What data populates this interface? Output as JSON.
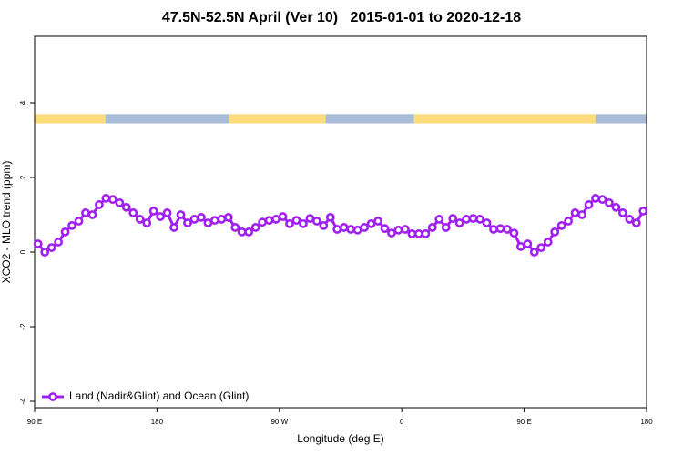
{
  "chart_data": {
    "type": "line",
    "title": "47.5N-52.5N April (Ver 10)   2015-01-01 to 2020-12-18",
    "x_label": "Longitude (deg E)",
    "y_label": "XCO2 - MLO trend (ppm)",
    "xlim": [
      90,
      540
    ],
    "ylim": [
      -4.17,
      5.78
    ],
    "xticks": [
      {
        "value": 90,
        "label": "90 E"
      },
      {
        "value": 180,
        "label": "180"
      },
      {
        "value": 270,
        "label": "90 W"
      },
      {
        "value": 360,
        "label": "0"
      },
      {
        "value": 450,
        "label": "90 E"
      },
      {
        "value": 540,
        "label": "180"
      }
    ],
    "yticks": [
      -4,
      -2,
      0,
      2,
      4
    ],
    "legend": "bottom-left",
    "strip_ylim": [
      3.45,
      3.7
    ],
    "strip": [
      [
        90,
        142,
        "#fddc7c"
      ],
      [
        142,
        233,
        "#a9bdd9"
      ],
      [
        233,
        304,
        "#fddc7c"
      ],
      [
        304,
        369,
        "#a9bdd9"
      ],
      [
        369,
        503,
        "#fddc7c"
      ],
      [
        503,
        540,
        "#a9bdd9"
      ]
    ],
    "x": [
      92.5,
      97.5,
      102.5,
      107.5,
      112.5,
      117.5,
      122.5,
      127.5,
      132.5,
      137.5,
      142.5,
      147.5,
      152.5,
      157.5,
      162.5,
      167.5,
      172.5,
      177.5,
      182.5,
      187.5,
      192.5,
      197.5,
      202.5,
      207.5,
      212.5,
      217.5,
      222.5,
      227.5,
      232.5,
      237.5,
      242.5,
      247.5,
      252.5,
      257.5,
      262.5,
      267.5,
      272.5,
      277.5,
      282.5,
      287.5,
      292.5,
      297.5,
      302.5,
      307.5,
      312.5,
      317.5,
      322.5,
      327.5,
      332.5,
      337.5,
      342.5,
      347.5,
      352.5,
      357.5,
      362.5,
      367.5,
      372.5,
      377.5,
      382.5,
      387.5,
      392.5,
      397.5,
      402.5,
      407.5,
      412.5,
      417.5,
      422.5,
      427.5,
      432.5,
      437.5,
      442.5,
      447.5,
      452.5,
      457.5,
      462.5,
      467.5,
      472.5,
      477.5,
      482.5,
      487.5,
      492.5,
      497.5,
      502.5,
      507.5,
      512.5,
      517.5,
      522.5,
      527.5,
      532.5,
      537.5
    ],
    "series": [
      {
        "name": "Land (Nadir&Glint) and Ocean (Glint)",
        "color": "#a020f0",
        "values": [
          0.22,
          0.0,
          0.12,
          0.27,
          0.54,
          0.71,
          0.83,
          1.05,
          1.0,
          1.27,
          1.44,
          1.41,
          1.32,
          1.2,
          1.05,
          0.88,
          0.78,
          1.1,
          0.95,
          1.05,
          0.66,
          1.0,
          0.78,
          0.88,
          0.93,
          0.78,
          0.85,
          0.88,
          0.93,
          0.66,
          0.54,
          0.54,
          0.66,
          0.8,
          0.85,
          0.88,
          0.95,
          0.76,
          0.85,
          0.76,
          0.9,
          0.83,
          0.71,
          0.93,
          0.61,
          0.66,
          0.61,
          0.59,
          0.66,
          0.76,
          0.83,
          0.63,
          0.51,
          0.59,
          0.61,
          0.49,
          0.49,
          0.49,
          0.66,
          0.88,
          0.66,
          0.9,
          0.78,
          0.88,
          0.9,
          0.88,
          0.78,
          0.61,
          0.63,
          0.61,
          0.51,
          0.15,
          0.22,
          0.0,
          0.12,
          0.27,
          0.54,
          0.71,
          0.83,
          1.05,
          1.0,
          1.27,
          1.44,
          1.41,
          1.32,
          1.2,
          1.05,
          0.88,
          0.78,
          1.1
        ]
      }
    ]
  }
}
